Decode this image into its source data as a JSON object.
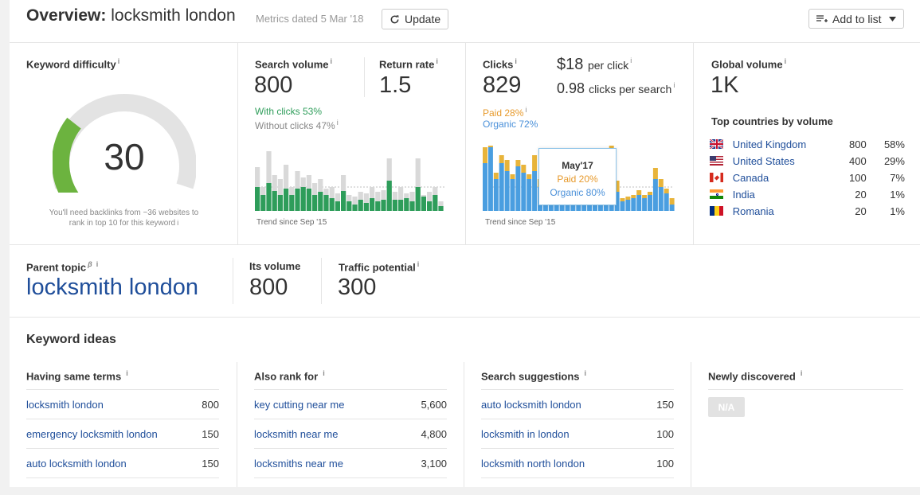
{
  "header": {
    "overview_label": "Overview:",
    "keyword": "locksmith london",
    "metrics_date": "Metrics dated 5 Mar '18",
    "update_label": "Update",
    "add_to_list_label": "Add to list"
  },
  "keyword_difficulty": {
    "label": "Keyword difficulty",
    "value": "30",
    "score_fraction": 0.3,
    "note_line1": "You'll need backlinks from ~36 websites to",
    "note_line2": "rank in top 10 for this keyword",
    "gauge_color": "#6cb33f"
  },
  "search_volume": {
    "label": "Search volume",
    "value": "800",
    "with_clicks": "With clicks 53%",
    "without_clicks": "Without clicks 47%",
    "trend_label": "Trend since Sep '15"
  },
  "return_rate": {
    "label": "Return rate",
    "value": "1.5"
  },
  "clicks": {
    "label": "Clicks",
    "value": "829",
    "cpc_value": "$18",
    "cpc_suffix": "per click",
    "cps_value": "0.98",
    "cps_suffix": "clicks per search",
    "paid": "Paid 28%",
    "organic": "Organic 72%",
    "trend_label": "Trend since Sep '15",
    "tooltip": {
      "month": "May'17",
      "paid": "Paid 20%",
      "organic": "Organic 80%"
    }
  },
  "global_volume": {
    "label": "Global volume",
    "value": "1K",
    "top_countries_label": "Top countries by volume",
    "countries": [
      {
        "name": "United Kingdom",
        "volume": "800",
        "share": "58%",
        "flag": "gb-flag"
      },
      {
        "name": "United States",
        "volume": "400",
        "share": "29%",
        "flag": "us-flag"
      },
      {
        "name": "Canada",
        "volume": "100",
        "share": "7%",
        "flag": "ca-flag"
      },
      {
        "name": "India",
        "volume": "20",
        "share": "1%",
        "flag": "in-flag"
      },
      {
        "name": "Romania",
        "volume": "20",
        "share": "1%",
        "flag": "ro-flag"
      }
    ]
  },
  "parent_topic": {
    "label": "Parent topic",
    "beta": "β",
    "value": "locksmith london"
  },
  "its_volume": {
    "label": "Its volume",
    "value": "800"
  },
  "traffic_potential": {
    "label": "Traffic potential",
    "value": "300"
  },
  "keyword_ideas": {
    "title": "Keyword ideas",
    "columns": [
      {
        "label": "Having same terms",
        "rows": [
          {
            "keyword": "locksmith london",
            "volume": "800"
          },
          {
            "keyword": "emergency locksmith london",
            "volume": "150"
          },
          {
            "keyword": "auto locksmith london",
            "volume": "150"
          }
        ]
      },
      {
        "label": "Also rank for",
        "rows": [
          {
            "keyword": "key cutting near me",
            "volume": "5,600"
          },
          {
            "keyword": "locksmith near me",
            "volume": "4,800"
          },
          {
            "keyword": "locksmiths near me",
            "volume": "3,100"
          }
        ]
      },
      {
        "label": "Search suggestions",
        "rows": [
          {
            "keyword": "auto locksmith london",
            "volume": "150"
          },
          {
            "keyword": "locksmith in london",
            "volume": "100"
          },
          {
            "keyword": "locksmith north london",
            "volume": "100"
          }
        ]
      },
      {
        "label": "Newly discovered",
        "na_label": "N/A"
      }
    ]
  },
  "colors": {
    "green": "#2e9d5a",
    "grey_bar": "#d9d9d9",
    "organic": "#4a9ee0",
    "paid": "#e8b43a",
    "link": "#1f4e9a"
  },
  "icons": [
    "refresh-icon",
    "add-list-icon",
    "caret-down-icon",
    "info-icon"
  ]
}
